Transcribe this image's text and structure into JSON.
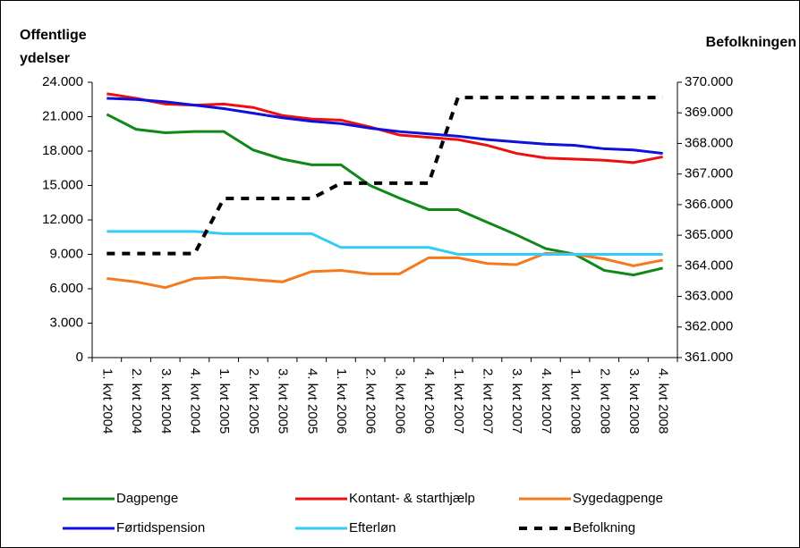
{
  "chart_data": {
    "type": "line",
    "ylabel_lines": [
      "Offentlige",
      "ydelser"
    ],
    "y2label": "Befolkningen",
    "categories": [
      "1. kvt 2004",
      "2. kvt 2004",
      "3. kvt 2004",
      "4. kvt 2004",
      "1. kvt 2005",
      "2. kvt 2005",
      "3. kvt 2005",
      "4. kvt 2005",
      "1. kvt 2006",
      "2. kvt 2006",
      "3. kvt 2006",
      "4. kvt 2006",
      "1. kvt 2007",
      "2. kvt 2007",
      "3. kvt 2007",
      "4. kvt 2007",
      "1. kvt 2008",
      "2. kvt 2008",
      "3. kvt 2008",
      "4. kvt 2008"
    ],
    "series": [
      {
        "name": "Dagpenge",
        "color": "#108818",
        "values": [
          21200,
          19900,
          19600,
          19700,
          19700,
          18100,
          17300,
          16800,
          16800,
          15000,
          13900,
          12900,
          12900,
          11800,
          10700,
          9500,
          9000,
          7600,
          7200,
          7800
        ]
      },
      {
        "name": "Kontant- & starthjælp",
        "color": "#ee1010",
        "values": [
          23000,
          22600,
          22100,
          22000,
          22100,
          21800,
          21100,
          20800,
          20700,
          20100,
          19400,
          19200,
          19000,
          18500,
          17800,
          17400,
          17300,
          17200,
          17000,
          17500
        ]
      },
      {
        "name": "Sygedagpenge",
        "color": "#f47a20",
        "values": [
          6900,
          6600,
          6100,
          6900,
          7000,
          6800,
          6600,
          7500,
          7600,
          7300,
          7300,
          8700,
          8700,
          8200,
          8100,
          9100,
          9000,
          8600,
          8000,
          8500
        ]
      },
      {
        "name": "Førtidspension",
        "color": "#1010dd",
        "values": [
          22600,
          22500,
          22300,
          22000,
          21700,
          21300,
          20900,
          20600,
          20400,
          20000,
          19700,
          19500,
          19300,
          19000,
          18800,
          18600,
          18500,
          18200,
          18100,
          17800
        ]
      },
      {
        "name": "Efterløn",
        "color": "#33ccf5",
        "values": [
          11000,
          11000,
          11000,
          11000,
          10800,
          10800,
          10800,
          10800,
          9600,
          9600,
          9600,
          9600,
          9000,
          9000,
          9000,
          9000,
          9000,
          9000,
          9000,
          9000
        ]
      },
      {
        "name": "Befolkning",
        "color": "#000000",
        "axis": "y2",
        "dashed": true,
        "values": [
          364400,
          364400,
          364400,
          364400,
          366200,
          366200,
          366200,
          366200,
          366700,
          366700,
          366700,
          366700,
          369500,
          369500,
          369500,
          369500,
          369500,
          369500,
          369500,
          369500
        ]
      }
    ],
    "ylim": [
      0,
      24000
    ],
    "yticks": [
      0,
      {
        "value": 3000,
        "label": "3.000"
      },
      {
        "value": 6000,
        "label": "6.000"
      },
      {
        "value": 9000,
        "label": "9.000"
      },
      {
        "value": 12000,
        "label": "12.000"
      },
      {
        "value": 15000,
        "label": "15.000"
      },
      {
        "value": 18000,
        "label": "18.000"
      },
      {
        "value": 21000,
        "label": "21.000"
      },
      {
        "value": 24000,
        "label": "24.000"
      }
    ],
    "y2lim": [
      361000,
      370000
    ],
    "y2ticks": [
      {
        "value": 361000,
        "label": "361.000"
      },
      {
        "value": 362000,
        "label": "362.000"
      },
      {
        "value": 363000,
        "label": "363.000"
      },
      {
        "value": 364000,
        "label": "364.000"
      },
      {
        "value": 365000,
        "label": "365.000"
      },
      {
        "value": 366000,
        "label": "366.000"
      },
      {
        "value": 367000,
        "label": "367.000"
      },
      {
        "value": 368000,
        "label": "368.000"
      },
      {
        "value": 369000,
        "label": "369.000"
      },
      {
        "value": 370000,
        "label": "370.000"
      }
    ]
  }
}
